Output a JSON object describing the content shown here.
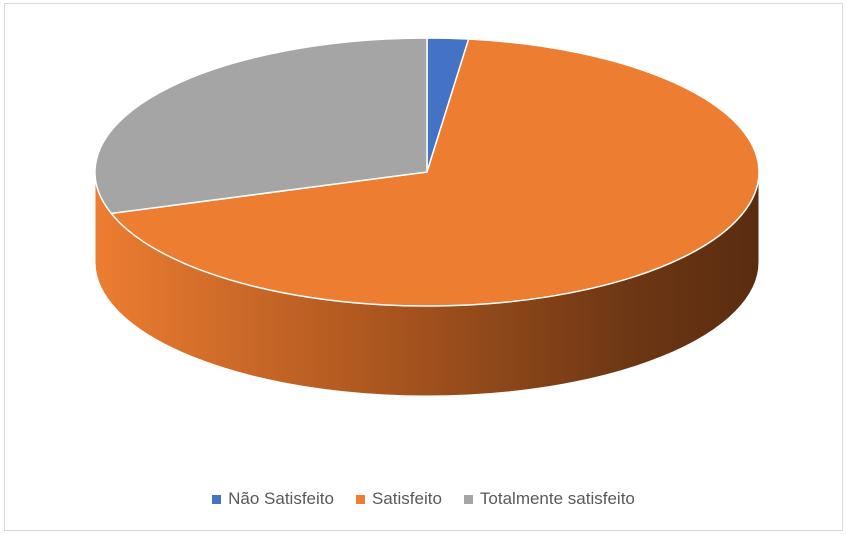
{
  "chart_data": {
    "type": "pie",
    "variant": "3d",
    "title": "",
    "categories": [
      "Não Satisfeito",
      "Satisfeito",
      "Totalmente satisfeito"
    ],
    "values": [
      2,
      68,
      30
    ],
    "colors": [
      "#4472C4",
      "#ED7D31",
      "#A5A5A5"
    ],
    "legend_position": "bottom",
    "data_labels": false
  }
}
